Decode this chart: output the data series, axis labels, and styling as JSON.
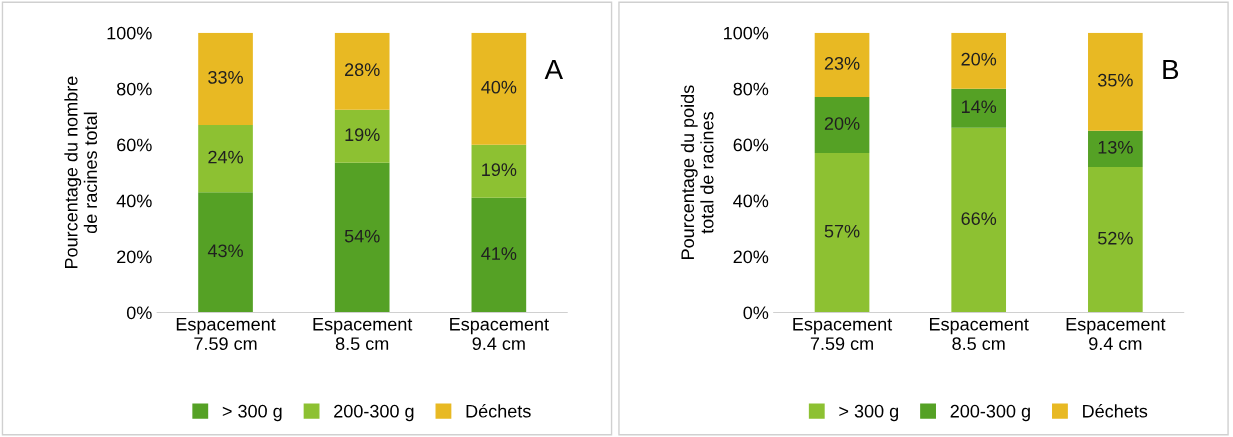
{
  "chart_data": [
    {
      "type": "bar",
      "stacked": true,
      "ylabel": "Pourcentage du nombre de racines total",
      "categories": [
        "Espacement\n7.59 cm",
        "Espacement\n8.5 cm",
        "Espacement\n9.4 cm"
      ],
      "ylim": [
        0,
        100
      ],
      "yticks": [
        {
          "value": 0,
          "label": "0%"
        },
        {
          "value": 20,
          "label": "20%"
        },
        {
          "value": 40,
          "label": "40%"
        },
        {
          "value": 60,
          "label": "60%"
        },
        {
          "value": 80,
          "label": "80%"
        },
        {
          "value": 100,
          "label": "100%"
        }
      ],
      "grid": false,
      "legend": "bottom",
      "annotations": [
        "A"
      ],
      "series": [
        {
          "name": "> 300 g",
          "color": "#55a125",
          "values": [
            43,
            53.5,
            41
          ],
          "value_labels": [
            "43%",
            "54%",
            "41%"
          ]
        },
        {
          "name": "200-300 g",
          "color": "#8dc132",
          "values": [
            24,
            19,
            19
          ],
          "value_labels": [
            "24%",
            "19%",
            "19%"
          ]
        },
        {
          "name": "Déchets",
          "color": "#e8b923",
          "values": [
            33,
            27.5,
            40
          ],
          "value_labels": [
            "33%",
            "28%",
            "40%"
          ]
        }
      ]
    },
    {
      "type": "bar",
      "stacked": true,
      "ylabel": "Pourcentage du poids total de racines",
      "categories": [
        "Espacement\n7.59 cm",
        "Espacement\n8.5 cm",
        "Espacement\n9.4 cm"
      ],
      "ylim": [
        0,
        100
      ],
      "yticks": [
        {
          "value": 0,
          "label": "0%"
        },
        {
          "value": 20,
          "label": "20%"
        },
        {
          "value": 40,
          "label": "40%"
        },
        {
          "value": 60,
          "label": "60%"
        },
        {
          "value": 80,
          "label": "80%"
        },
        {
          "value": 100,
          "label": "100%"
        }
      ],
      "grid": false,
      "legend": "bottom",
      "annotations": [
        "B"
      ],
      "series": [
        {
          "name": "> 300 g",
          "color": "#8dc132",
          "values": [
            57,
            66,
            52
          ],
          "value_labels": [
            "57%",
            "66%",
            "52%"
          ]
        },
        {
          "name": "200-300 g",
          "color": "#55a125",
          "values": [
            20,
            14,
            13
          ],
          "value_labels": [
            "20%",
            "14%",
            "13%"
          ]
        },
        {
          "name": "Déchets",
          "color": "#e8b923",
          "values": [
            23,
            20,
            35
          ],
          "value_labels": [
            "23%",
            "20%",
            "35%"
          ]
        }
      ]
    }
  ]
}
